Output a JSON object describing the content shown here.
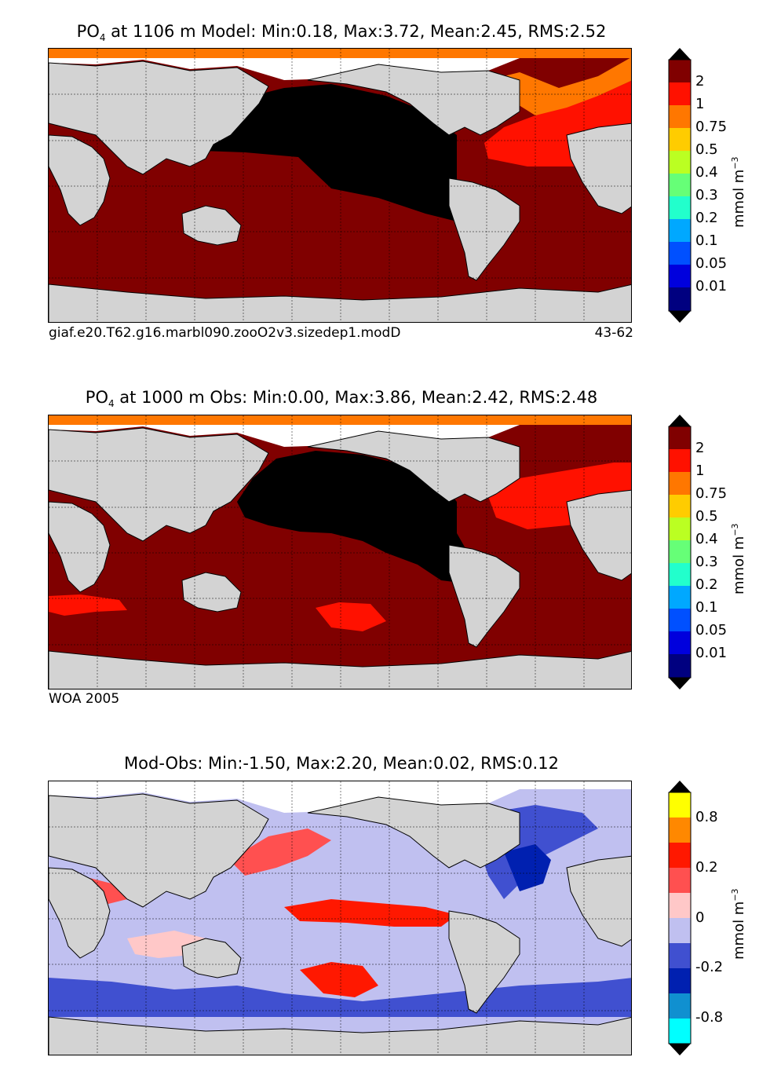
{
  "panels": [
    {
      "title_pre": "PO",
      "title_sub": "4",
      "title_post": " at 1106 m Model: Min:0.18, Max:3.72, Mean:2.45, RMS:2.52",
      "footer_left": "giaf.e20.T62.g16.marbl090.zooO2v3.sizedep1.modD",
      "footer_right": "43-62",
      "colorbar_ticks": [
        "2",
        "1",
        "0.75",
        "0.5",
        "0.4",
        "0.3",
        "0.2",
        "0.1",
        "0.05",
        "0.01"
      ],
      "colorbar_unit": "mmol m",
      "colorbar_unit_sup": "−3"
    },
    {
      "title_pre": "PO",
      "title_sub": "4",
      "title_post": " at 1000 m Obs: Min:0.00, Max:3.86, Mean:2.42, RMS:2.48",
      "footer_left": "WOA 2005",
      "footer_right": "",
      "colorbar_ticks": [
        "2",
        "1",
        "0.75",
        "0.5",
        "0.4",
        "0.3",
        "0.2",
        "0.1",
        "0.05",
        "0.01"
      ],
      "colorbar_unit": "mmol m",
      "colorbar_unit_sup": "−3"
    },
    {
      "title_pre": "Mod-Obs: Min:-1.50, Max:2.20, Mean:0.02, RMS:0.12",
      "title_sub": "",
      "title_post": "",
      "footer_left": "",
      "footer_right": "",
      "colorbar_ticks": [
        "0.8",
        "0.2",
        "0",
        "-0.2",
        "-0.8"
      ],
      "colorbar_unit": "mmol m",
      "colorbar_unit_sup": "−3"
    }
  ],
  "colors": {
    "land": "#d3d3d3",
    "missing": "#ffffff",
    "po4_scale": [
      "#000080",
      "#0000dd",
      "#0050ff",
      "#00a8ff",
      "#22ffcc",
      "#66ff77",
      "#bbff22",
      "#ffcc00",
      "#ff7700",
      "#ff1100",
      "#800000",
      "#000000"
    ],
    "diff_scale": [
      "#00ffff",
      "#1090d0",
      "#0020b0",
      "#4050d0",
      "#c0c0f0",
      "#ffc8c8",
      "#ff5050",
      "#ff1800",
      "#ff8800",
      "#ffff00"
    ]
  }
}
